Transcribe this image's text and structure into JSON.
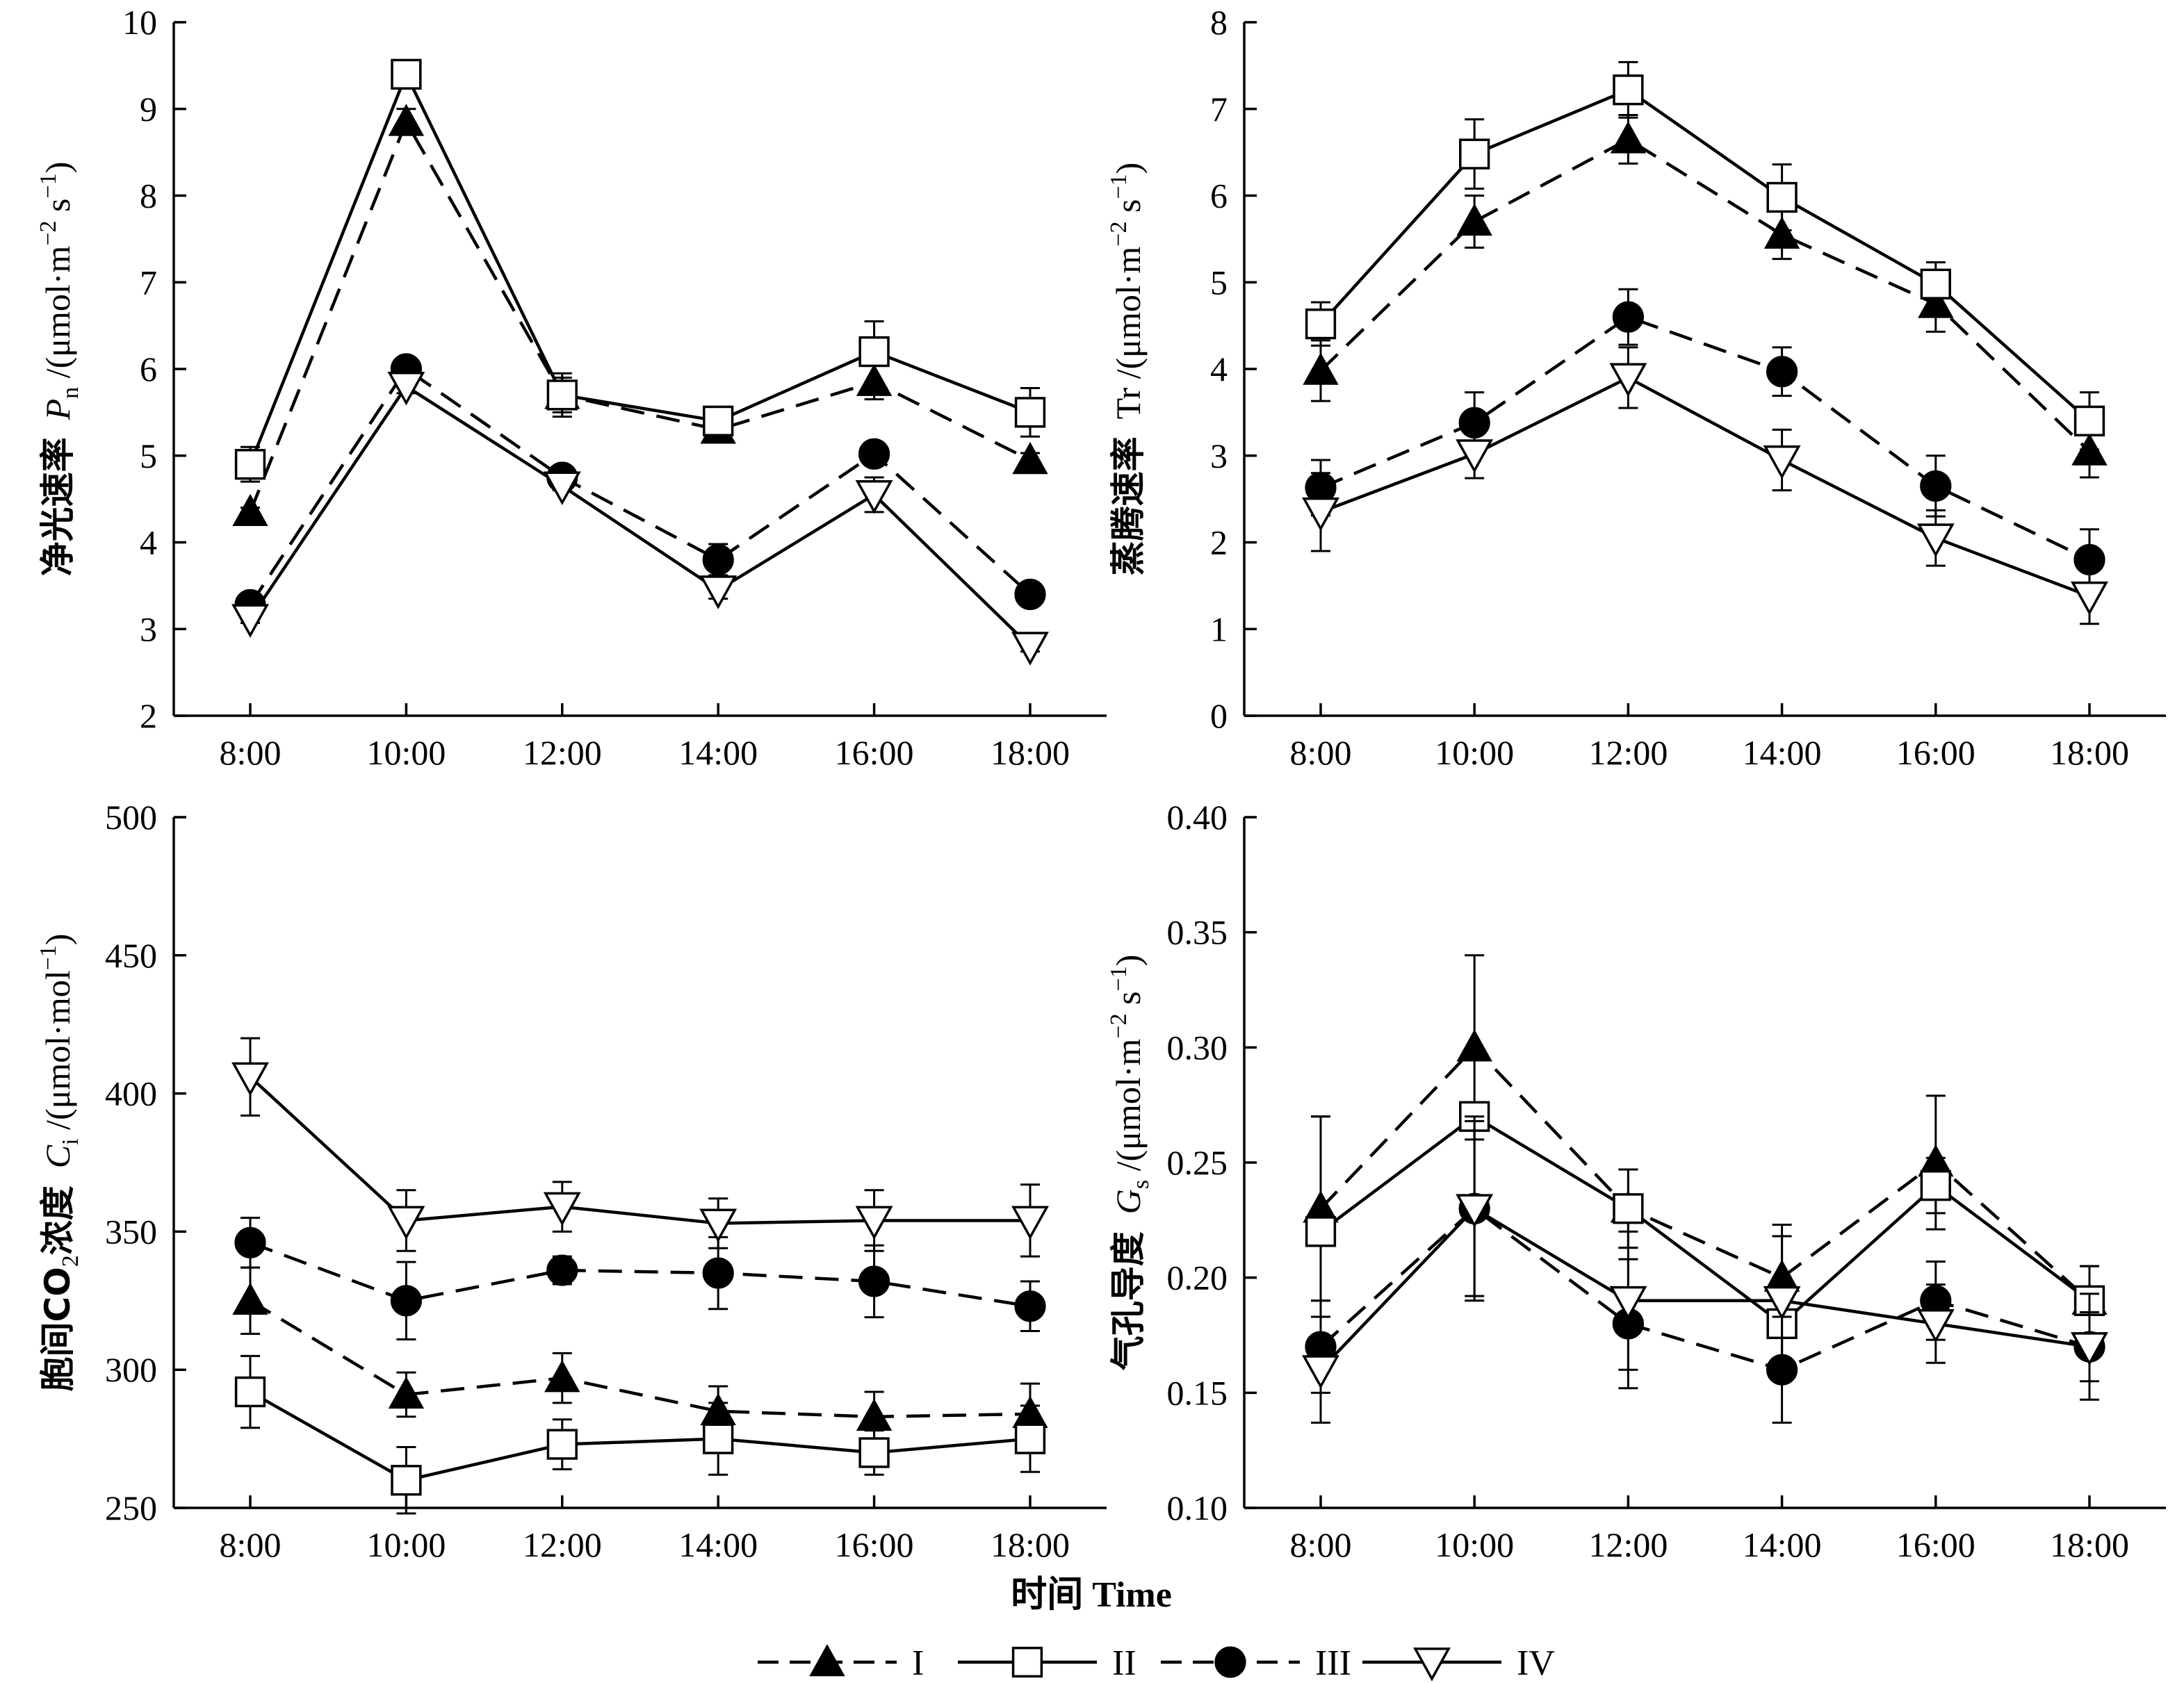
{
  "chart_data": [
    {
      "type": "line",
      "ylabel": "净光速率 Pn /(μmol·m⁻² s⁻¹)",
      "ylabel_parts": {
        "zh": "净光速率",
        "sym": "P",
        "sub": "n",
        "unit_prefix": " /(μmol·m",
        "sup1": "−2",
        "mid": " s",
        "sup2": "−1",
        "unit_suffix": ")"
      },
      "categories": [
        "8:00",
        "10:00",
        "12:00",
        "14:00",
        "16:00",
        "18:00"
      ],
      "ylim": [
        2,
        10
      ],
      "yticks": [
        "2",
        "3",
        "4",
        "5",
        "6",
        "7",
        "8",
        "9",
        "10"
      ],
      "series": [
        {
          "name": "I",
          "values": [
            4.35,
            8.85,
            5.7,
            5.3,
            5.85,
            4.95
          ],
          "err": [
            0.05,
            0.15,
            0.2,
            0.08,
            0.2,
            0.08
          ]
        },
        {
          "name": "II",
          "values": [
            4.9,
            9.4,
            5.7,
            5.4,
            6.2,
            5.5
          ],
          "err": [
            0.2,
            0.15,
            0.25,
            0.1,
            0.35,
            0.28
          ]
        },
        {
          "name": "III",
          "values": [
            3.28,
            6.0,
            4.75,
            3.8,
            5.02,
            3.4
          ],
          "err": [
            0.05,
            0.08,
            0.05,
            0.18,
            0.08,
            0.12
          ]
        },
        {
          "name": "IV",
          "values": [
            3.12,
            5.8,
            4.65,
            3.45,
            4.55,
            2.8
          ],
          "err": [
            0.05,
            0.08,
            0.05,
            0.1,
            0.2,
            0.06
          ]
        }
      ]
    },
    {
      "type": "line",
      "ylabel": "蒸腾速率 Tr /(μmol·m⁻² s⁻¹)",
      "ylabel_parts": {
        "zh": "蒸腾速率",
        "sym": "Tr",
        "sub": "",
        "unit_prefix": " /(μmol·m",
        "sup1": "−2",
        "mid": " s",
        "sup2": "−1",
        "unit_suffix": ")"
      },
      "categories": [
        "8:00",
        "10:00",
        "12:00",
        "14:00",
        "16:00",
        "18:00"
      ],
      "ylim": [
        0,
        8
      ],
      "yticks": [
        "0",
        "1",
        "2",
        "3",
        "4",
        "5",
        "6",
        "7",
        "8"
      ],
      "series": [
        {
          "name": "I",
          "values": [
            3.98,
            5.7,
            6.65,
            5.55,
            4.75,
            3.05
          ],
          "err": [
            0.35,
            0.3,
            0.28,
            0.28,
            0.32,
            0.3
          ]
        },
        {
          "name": "II",
          "values": [
            4.52,
            6.48,
            7.22,
            5.98,
            4.98,
            3.4
          ],
          "err": [
            0.25,
            0.4,
            0.32,
            0.38,
            0.25,
            0.33
          ]
        },
        {
          "name": "III",
          "values": [
            2.63,
            3.38,
            4.6,
            3.97,
            2.65,
            1.8
          ],
          "err": [
            0.32,
            0.35,
            0.32,
            0.28,
            0.35,
            0.35
          ]
        },
        {
          "name": "IV",
          "values": [
            2.35,
            3.02,
            3.9,
            2.95,
            2.05,
            1.38
          ],
          "err": [
            0.45,
            0.28,
            0.35,
            0.35,
            0.32,
            0.32
          ]
        }
      ]
    },
    {
      "type": "line",
      "ylabel": "胞间CO2浓度 Ci /(μmol·mol⁻¹)",
      "ylabel_parts": {
        "zh": "胞间CO",
        "zh_sub": "2",
        "zh2": "浓度",
        "sym": "C",
        "sub": "i",
        "unit_prefix": " /(μmol·mol",
        "sup1": "−1",
        "mid": "",
        "sup2": "",
        "unit_suffix": ")"
      },
      "categories": [
        "8:00",
        "10:00",
        "12:00",
        "14:00",
        "16:00",
        "18:00"
      ],
      "ylim": [
        250,
        500
      ],
      "yticks": [
        "250",
        "300",
        "350",
        "400",
        "450",
        "500"
      ],
      "series": [
        {
          "name": "I",
          "values": [
            325,
            291,
            297,
            285,
            283,
            284
          ],
          "err": [
            12,
            8,
            9,
            9,
            9,
            11
          ]
        },
        {
          "name": "II",
          "values": [
            292,
            260,
            273,
            275,
            270,
            275
          ],
          "err": [
            13,
            12,
            9,
            13,
            8,
            12
          ]
        },
        {
          "name": "III",
          "values": [
            346,
            325,
            336,
            335,
            332,
            323
          ],
          "err": [
            9,
            14,
            5,
            13,
            13,
            9
          ]
        },
        {
          "name": "IV",
          "values": [
            406,
            354,
            359,
            353,
            354,
            354
          ],
          "err": [
            14,
            11,
            9,
            9,
            11,
            13
          ]
        }
      ]
    },
    {
      "type": "line",
      "ylabel": "气孔导度 Gs /(μmol·m⁻² s⁻¹)",
      "ylabel_parts": {
        "zh": "气孔导度",
        "sym": "G",
        "sub": "s",
        "unit_prefix": " /(μmol·m",
        "sup1": "−2",
        "mid": " s",
        "sup2": "−1",
        "unit_suffix": ")"
      },
      "categories": [
        "8:00",
        "10:00",
        "12:00",
        "14:00",
        "16:00",
        "18:00"
      ],
      "ylim": [
        0.1,
        0.4
      ],
      "yticks": [
        "0.10",
        "0.15",
        "0.20",
        "0.25",
        "0.30",
        "0.35",
        "0.40"
      ],
      "series": [
        {
          "name": "I",
          "values": [
            0.23,
            0.3,
            0.23,
            0.2,
            0.25,
            0.19
          ],
          "err": [
            0.04,
            0.04,
            0.017,
            0.023,
            0.029,
            0.015
          ]
        },
        {
          "name": "II",
          "values": [
            0.22,
            0.27,
            0.23,
            0.18,
            0.24,
            0.19
          ],
          "err": [
            0.05,
            0.005,
            0.017,
            0.02,
            0.012,
            0.015
          ]
        },
        {
          "name": "III",
          "values": [
            0.17,
            0.23,
            0.18,
            0.16,
            0.19,
            0.17
          ],
          "err": [
            0.02,
            0.04,
            0.028,
            0.023,
            0.017,
            0.023
          ]
        },
        {
          "name": "IV",
          "values": [
            0.16,
            0.23,
            0.19,
            0.19,
            0.18,
            0.17
          ],
          "err": [
            0.023,
            0.038,
            0.03,
            0.028,
            0.017,
            0.015
          ]
        }
      ]
    }
  ],
  "xlabel": "时间  Time",
  "legend": [
    "I",
    "II",
    "III",
    "IV"
  ],
  "series_styles": {
    "I": {
      "dash": true,
      "marker": "triangle-up-filled"
    },
    "II": {
      "dash": false,
      "marker": "square-open"
    },
    "III": {
      "dash": true,
      "marker": "circle-filled"
    },
    "IV": {
      "dash": false,
      "marker": "triangle-down-open"
    }
  },
  "colors": {
    "line": "#000000",
    "background": "#ffffff"
  }
}
